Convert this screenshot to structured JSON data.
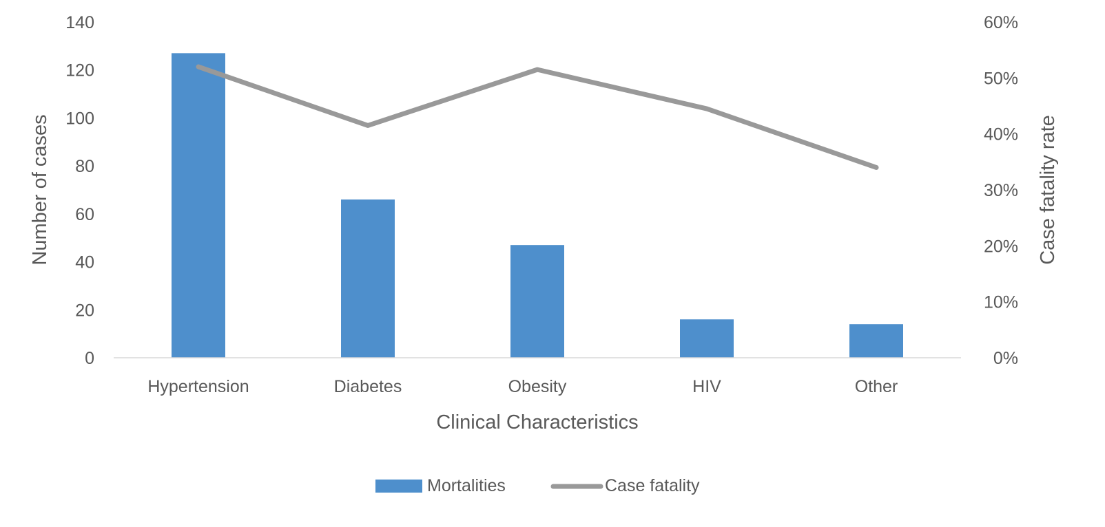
{
  "chart_data": {
    "type": "bar+line",
    "categories": [
      "Hypertension",
      "Diabetes",
      "Obesity",
      "HIV",
      "Other"
    ],
    "series": [
      {
        "name": "Mortalities",
        "type": "bar",
        "axis": "left",
        "color": "#4e8fcc",
        "values": [
          127,
          66,
          47,
          16,
          14
        ]
      },
      {
        "name": "Case fatality",
        "type": "line",
        "axis": "right",
        "color": "#999999",
        "values": [
          0.52,
          0.415,
          0.515,
          0.445,
          0.34
        ]
      }
    ],
    "xlabel": "Clinical Characteristics",
    "ylabel": "Number of cases",
    "y2label": "Case fatality rate",
    "ylim": [
      0,
      140
    ],
    "yticks": [
      "0",
      "20",
      "40",
      "60",
      "80",
      "100",
      "120",
      "140"
    ],
    "y2lim": [
      0,
      0.6
    ],
    "y2ticks": [
      "0%",
      "10%",
      "20%",
      "30%",
      "40%",
      "50%",
      "60%"
    ],
    "grid": false,
    "legend": "bottom"
  }
}
